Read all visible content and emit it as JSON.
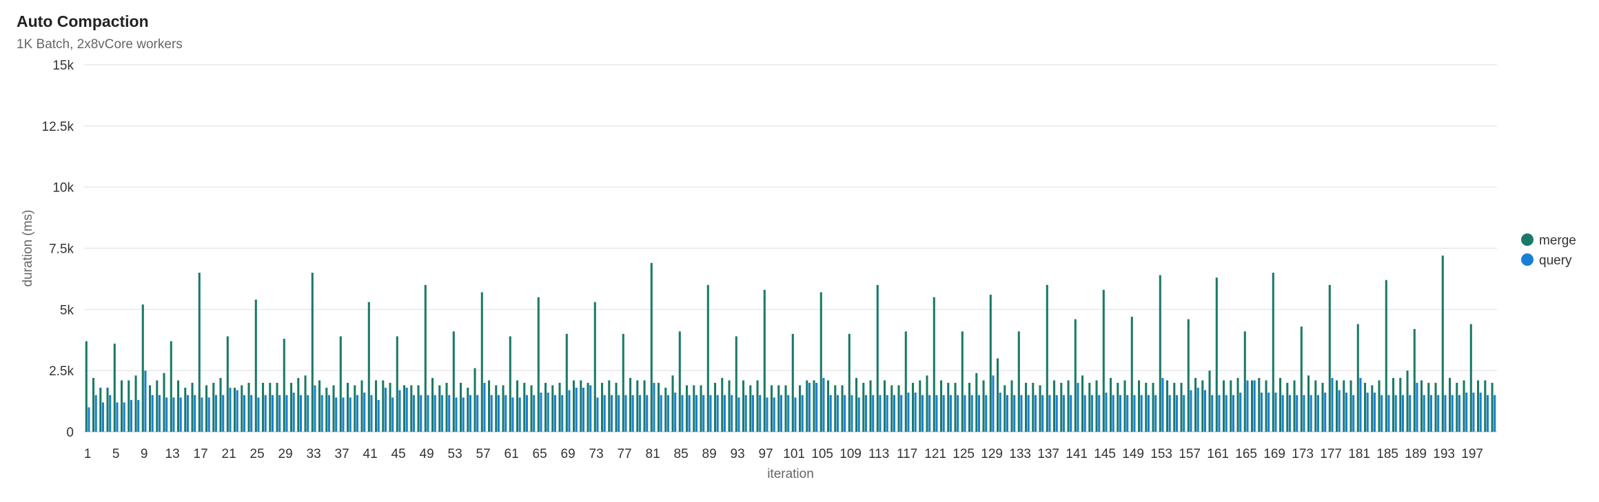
{
  "chart_data": {
    "type": "bar",
    "title": "Auto Compaction",
    "subtitle": "1K Batch, 2x8vCore workers",
    "xlabel": "iteration",
    "ylabel": "duration (ms)",
    "ylim": [
      0,
      15000
    ],
    "y_ticks": [
      {
        "value": 0,
        "label": "0"
      },
      {
        "value": 2500,
        "label": "2.5k"
      },
      {
        "value": 5000,
        "label": "5k"
      },
      {
        "value": 7500,
        "label": "7.5k"
      },
      {
        "value": 10000,
        "label": "10k"
      },
      {
        "value": 12500,
        "label": "12.5k"
      },
      {
        "value": 15000,
        "label": "15k"
      }
    ],
    "x_tick_step": 4,
    "grid": true,
    "legend_position": "right",
    "categories": [
      1,
      2,
      3,
      4,
      5,
      6,
      7,
      8,
      9,
      10,
      11,
      12,
      13,
      14,
      15,
      16,
      17,
      18,
      19,
      20,
      21,
      22,
      23,
      24,
      25,
      26,
      27,
      28,
      29,
      30,
      31,
      32,
      33,
      34,
      35,
      36,
      37,
      38,
      39,
      40,
      41,
      42,
      43,
      44,
      45,
      46,
      47,
      48,
      49,
      50,
      51,
      52,
      53,
      54,
      55,
      56,
      57,
      58,
      59,
      60,
      61,
      62,
      63,
      64,
      65,
      66,
      67,
      68,
      69,
      70,
      71,
      72,
      73,
      74,
      75,
      76,
      77,
      78,
      79,
      80,
      81,
      82,
      83,
      84,
      85,
      86,
      87,
      88,
      89,
      90,
      91,
      92,
      93,
      94,
      95,
      96,
      97,
      98,
      99,
      100,
      101,
      102,
      103,
      104,
      105,
      106,
      107,
      108,
      109,
      110,
      111,
      112,
      113,
      114,
      115,
      116,
      117,
      118,
      119,
      120,
      121,
      122,
      123,
      124,
      125,
      126,
      127,
      128,
      129,
      130,
      131,
      132,
      133,
      134,
      135,
      136,
      137,
      138,
      139,
      140,
      141,
      142,
      143,
      144,
      145,
      146,
      147,
      148,
      149,
      150,
      151,
      152,
      153,
      154,
      155,
      156,
      157,
      158,
      159,
      160,
      161,
      162,
      163,
      164,
      165,
      166,
      167,
      168,
      169,
      170,
      171,
      172,
      173,
      174,
      175,
      176,
      177,
      178,
      179,
      180,
      181,
      182,
      183,
      184,
      185,
      186,
      187,
      188,
      189,
      190,
      191,
      192,
      193,
      194,
      195,
      196,
      197,
      198,
      199,
      200
    ],
    "series": [
      {
        "name": "merge",
        "color": "#1a7a66",
        "values": [
          3700,
          2200,
          1800,
          1800,
          3600,
          2100,
          2100,
          2300,
          5200,
          1900,
          2100,
          2400,
          3700,
          2100,
          1800,
          2000,
          6500,
          1900,
          2000,
          2200,
          3900,
          1800,
          1900,
          2000,
          5400,
          2000,
          2000,
          2000,
          3800,
          2000,
          2200,
          2300,
          6500,
          2100,
          1800,
          1900,
          3900,
          2000,
          1900,
          2100,
          5300,
          2100,
          2100,
          2000,
          3900,
          1900,
          1900,
          1900,
          6000,
          2200,
          1900,
          2000,
          4100,
          2000,
          1800,
          2600,
          5700,
          2100,
          1900,
          1900,
          3900,
          2100,
          2000,
          1900,
          5500,
          2000,
          1900,
          2000,
          4000,
          2100,
          2100,
          2000,
          5300,
          2000,
          2100,
          2000,
          4000,
          2200,
          2100,
          2100,
          6900,
          2000,
          1800,
          2300,
          4100,
          1900,
          1900,
          1900,
          6000,
          2000,
          2200,
          2100,
          3900,
          2100,
          1900,
          2100,
          5800,
          1900,
          1900,
          1900,
          4000,
          1900,
          2100,
          2100,
          5700,
          2100,
          1900,
          1900,
          4000,
          2200,
          2000,
          2100,
          6000,
          2100,
          1900,
          1900,
          4100,
          2000,
          2100,
          2300,
          5500,
          2100,
          2000,
          2000,
          4100,
          2000,
          2400,
          2100,
          5600,
          3000,
          1900,
          2100,
          4100,
          2000,
          2000,
          1900,
          6000,
          2100,
          2000,
          2100,
          4600,
          2300,
          2000,
          2100,
          5800,
          2200,
          2000,
          2100,
          4700,
          2100,
          2000,
          2000,
          6400,
          2100,
          2000,
          2000,
          4600,
          2200,
          2100,
          2500,
          6300,
          2100,
          2100,
          2200,
          4100,
          2100,
          2200,
          2100,
          6500,
          2200,
          2000,
          2100,
          4300,
          2300,
          2100,
          2000,
          6000,
          2100,
          2100,
          2100,
          4400,
          2000,
          1900,
          2100,
          6200,
          2200,
          2200,
          2500,
          4200,
          2100,
          2000,
          2000,
          7200,
          2200,
          2000,
          2100,
          4400,
          2100,
          2100,
          2000
        ]
      },
      {
        "name": "query",
        "color": "#1a7fd4",
        "values": [
          1000,
          1500,
          1200,
          1500,
          1200,
          1200,
          1300,
          1300,
          2500,
          1500,
          1500,
          1400,
          1400,
          1400,
          1500,
          1500,
          1400,
          1400,
          1500,
          1500,
          1800,
          1700,
          1500,
          1500,
          1400,
          1500,
          1500,
          1500,
          1500,
          1600,
          1500,
          1500,
          1900,
          1500,
          1500,
          1400,
          1400,
          1400,
          1500,
          1600,
          1500,
          1300,
          1800,
          1400,
          1700,
          1800,
          1500,
          1500,
          1500,
          1500,
          1500,
          1500,
          1400,
          1400,
          1500,
          1500,
          2000,
          1500,
          1500,
          1500,
          1400,
          1400,
          1500,
          1500,
          1600,
          1600,
          1500,
          1500,
          1700,
          1800,
          1800,
          1900,
          1400,
          1500,
          1500,
          1500,
          1500,
          1500,
          1500,
          1500,
          2000,
          1500,
          1500,
          1600,
          1500,
          1500,
          1500,
          1500,
          1500,
          1500,
          1500,
          1500,
          1400,
          1500,
          1500,
          1500,
          1400,
          1400,
          1500,
          1500,
          1400,
          1500,
          2000,
          2000,
          2200,
          1500,
          1500,
          1500,
          1500,
          1400,
          1500,
          1500,
          1500,
          1500,
          1500,
          1500,
          1600,
          1600,
          1500,
          1500,
          1500,
          1500,
          1500,
          1500,
          1500,
          1500,
          1500,
          1500,
          2300,
          1600,
          1500,
          1500,
          1500,
          1500,
          1500,
          1500,
          1500,
          1500,
          1500,
          1500,
          2000,
          1500,
          1500,
          1500,
          1600,
          1500,
          1500,
          1500,
          1500,
          1500,
          1500,
          1500,
          2200,
          1500,
          1500,
          1500,
          1700,
          1800,
          1700,
          1500,
          1500,
          1500,
          1500,
          1600,
          2100,
          2100,
          1600,
          1600,
          1600,
          1500,
          1500,
          1500,
          1500,
          1500,
          1500,
          1600,
          2200,
          1700,
          1600,
          1500,
          2200,
          1600,
          1600,
          1500,
          1500,
          1500,
          1500,
          1500,
          2000,
          1500,
          1500,
          1500,
          1500,
          1500,
          1500,
          1600,
          1600,
          1600,
          1500,
          1500
        ]
      }
    ]
  }
}
